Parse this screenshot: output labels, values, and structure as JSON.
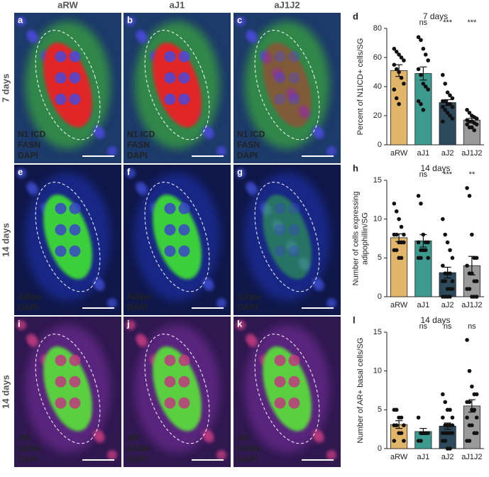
{
  "column_headers": [
    "aRW",
    "aJ1",
    "aJ1J2"
  ],
  "row_labels": [
    "7 days",
    "14 days",
    "14 days"
  ],
  "panels": [
    {
      "letter": "a",
      "channels": [
        {
          "text": "N1 ICD",
          "color": "#33ee33"
        },
        {
          "text": "FASN",
          "color": "#ff3030"
        },
        {
          "text": "DAPI",
          "color": "#3a5cff"
        }
      ]
    },
    {
      "letter": "b",
      "channels": [
        {
          "text": "N1 ICD",
          "color": "#33ee33"
        },
        {
          "text": "FASN",
          "color": "#ff3030"
        },
        {
          "text": "DAPI",
          "color": "#3a5cff"
        }
      ]
    },
    {
      "letter": "c",
      "channels": [
        {
          "text": "N1 ICD",
          "color": "#33ee33"
        },
        {
          "text": "FASN",
          "color": "#ff3030"
        },
        {
          "text": "DAPI",
          "color": "#3a5cff"
        }
      ]
    },
    {
      "letter": "e",
      "channels": [
        {
          "text": "Adipo",
          "color": "#33ee33"
        },
        {
          "text": "DAPI",
          "color": "#3a5cff"
        }
      ]
    },
    {
      "letter": "f",
      "channels": [
        {
          "text": "Adipo",
          "color": "#33ee33"
        },
        {
          "text": "DAPI",
          "color": "#3a5cff"
        }
      ]
    },
    {
      "letter": "g",
      "channels": [
        {
          "text": "Adipo",
          "color": "#33ee33"
        },
        {
          "text": "DAPI",
          "color": "#3a5cff"
        }
      ]
    },
    {
      "letter": "i",
      "channels": [
        {
          "text": "AR",
          "color": "#ff3030"
        },
        {
          "text": "FASN",
          "color": "#33ee33"
        },
        {
          "text": "DAPI",
          "color": "#3a5cff"
        }
      ]
    },
    {
      "letter": "j",
      "channels": [
        {
          "text": "AR",
          "color": "#ff3030"
        },
        {
          "text": "FASN",
          "color": "#33ee33"
        },
        {
          "text": "DAPI",
          "color": "#3a5cff"
        }
      ]
    },
    {
      "letter": "k",
      "channels": [
        {
          "text": "AR",
          "color": "#ff3030"
        },
        {
          "text": "FASN",
          "color": "#33ee33"
        },
        {
          "text": "DAPI",
          "color": "#3a5cff"
        }
      ]
    }
  ],
  "chart_data": [
    {
      "type": "bar",
      "letter": "d",
      "title": "7 days",
      "ylabel": [
        "Percent of N1ICD+ cells/SG"
      ],
      "categories": [
        "aRW",
        "aJ1",
        "aJ2",
        "aJ1J2"
      ],
      "colors": [
        "#e2b66a",
        "#3d9a8f",
        "#2c4a5c",
        "#9a9a9a"
      ],
      "values": [
        51,
        49,
        29,
        17
      ],
      "errors": [
        4,
        4.5,
        2,
        1.3
      ],
      "significance": [
        null,
        "ns",
        "***",
        "***"
      ],
      "points": [
        [
          66,
          64,
          62,
          60,
          58,
          55,
          52,
          50,
          46,
          42,
          38,
          32,
          28
        ],
        [
          74,
          72,
          66,
          62,
          58,
          52,
          48,
          42,
          40,
          38,
          30,
          28,
          24
        ],
        [
          48,
          42,
          36,
          34,
          32,
          30,
          30,
          28,
          28,
          26,
          26,
          24,
          22,
          20,
          18,
          16
        ],
        [
          24,
          22,
          20,
          19,
          18,
          17,
          16,
          16,
          15,
          14,
          14,
          12,
          12,
          10
        ]
      ],
      "ylim": [
        0,
        80
      ],
      "yticks": [
        0,
        20,
        40,
        60,
        80
      ]
    },
    {
      "type": "bar",
      "letter": "h",
      "title": "14 days",
      "ylabel": [
        "Number of cells expressing",
        "adipophillin/SG"
      ],
      "categories": [
        "aRW",
        "aJ1",
        "aJ2",
        "aJ1J2"
      ],
      "colors": [
        "#e2b66a",
        "#3d9a8f",
        "#2c4a5c",
        "#9a9a9a"
      ],
      "values": [
        7.6,
        7.2,
        3.1,
        4.0
      ],
      "errors": [
        0.5,
        0.8,
        0.7,
        1.2
      ],
      "significance": [
        null,
        "ns",
        "***",
        "**"
      ],
      "points": [
        [
          12,
          11,
          10,
          9,
          8,
          8,
          8,
          7,
          7,
          7,
          6,
          6,
          5,
          5
        ],
        [
          13,
          12,
          8,
          7,
          7,
          7,
          6,
          6,
          6,
          5,
          5,
          5
        ],
        [
          10,
          8,
          7,
          6,
          5,
          4,
          3,
          3,
          3,
          2,
          2,
          2,
          1,
          1,
          1,
          0,
          0,
          0,
          0
        ],
        [
          14,
          13,
          8,
          5,
          5,
          4,
          3,
          3,
          2,
          2,
          1,
          1,
          0,
          0,
          0
        ]
      ],
      "ylim": [
        0,
        15
      ],
      "yticks": [
        0,
        5,
        10,
        15
      ]
    },
    {
      "type": "bar",
      "letter": "l",
      "title": "14 days",
      "ylabel": [
        "Number of AR+ basal cells/SG"
      ],
      "categories": [
        "aRW",
        "aJ1",
        "aJ2",
        "aJ1J2"
      ],
      "colors": [
        "#e2b66a",
        "#3d9a8f",
        "#2c4a5c",
        "#9a9a9a"
      ],
      "values": [
        3.1,
        2.2,
        2.9,
        5.5
      ],
      "errors": [
        0.5,
        0.4,
        0.4,
        0.8
      ],
      "significance": [
        null,
        "ns",
        "ns",
        "ns"
      ],
      "points": [
        [
          5,
          5,
          4,
          4,
          3,
          3,
          3,
          2,
          2,
          1,
          1
        ],
        [
          4,
          2,
          2,
          2,
          2,
          1,
          1
        ],
        [
          7,
          6,
          5,
          5,
          4,
          4,
          3,
          3,
          3,
          3,
          2,
          2,
          2,
          2,
          2,
          1,
          1,
          0,
          0
        ],
        [
          14,
          10,
          8,
          7,
          7,
          6,
          6,
          5,
          5,
          4,
          4,
          3,
          3,
          2,
          2,
          1,
          1
        ]
      ],
      "ylim": [
        0,
        15
      ],
      "yticks": [
        0,
        5,
        10,
        15
      ]
    }
  ]
}
